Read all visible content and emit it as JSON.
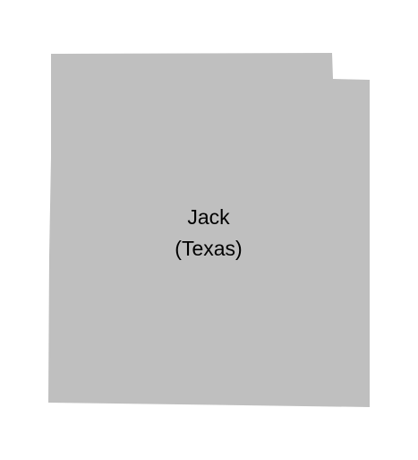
{
  "map": {
    "county_name": "Jack",
    "state_label": "(Texas)",
    "fill_color": "#bfbfbf",
    "background_color": "#ffffff"
  }
}
